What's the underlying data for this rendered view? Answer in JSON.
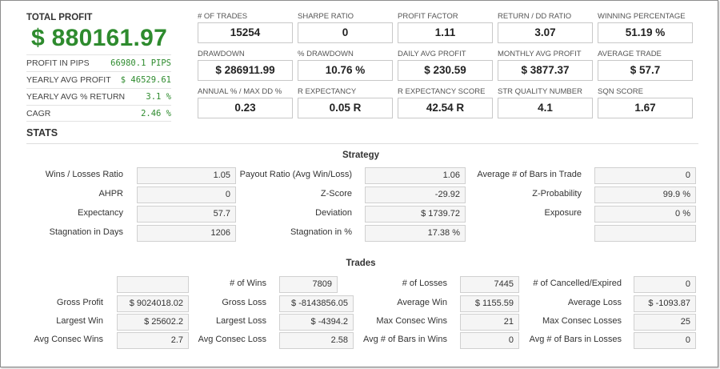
{
  "summary": {
    "total_label": "TOTAL PROFIT",
    "total_value": "$ 880161.97",
    "rows": [
      {
        "label": "PROFIT IN PIPS",
        "value": "66980.1 PIPS"
      },
      {
        "label": "YEARLY AVG PROFIT",
        "value": "$ 46529.61"
      },
      {
        "label": "YEARLY AVG % RETURN",
        "value": "3.1 %"
      },
      {
        "label": "CAGR",
        "value": "2.46 %"
      }
    ]
  },
  "cards": [
    {
      "label": "# OF TRADES",
      "value": "15254"
    },
    {
      "label": "SHARPE RATIO",
      "value": "0"
    },
    {
      "label": "PROFIT FACTOR",
      "value": "1.11"
    },
    {
      "label": "RETURN / DD RATIO",
      "value": "3.07"
    },
    {
      "label": "WINNING PERCENTAGE",
      "value": "51.19 %"
    },
    {
      "label": "DRAWDOWN",
      "value": "$ 286911.99"
    },
    {
      "label": "% DRAWDOWN",
      "value": "10.76 %"
    },
    {
      "label": "DAILY AVG PROFIT",
      "value": "$ 230.59"
    },
    {
      "label": "MONTHLY AVG PROFIT",
      "value": "$ 3877.37"
    },
    {
      "label": "AVERAGE TRADE",
      "value": "$ 57.7"
    },
    {
      "label": "ANNUAL % / MAX DD %",
      "value": "0.23"
    },
    {
      "label": "R EXPECTANCY",
      "value": "0.05 R"
    },
    {
      "label": "R EXPECTANCY SCORE",
      "value": "42.54 R"
    },
    {
      "label": "STR QUALITY NUMBER",
      "value": "4.1"
    },
    {
      "label": "SQN SCORE",
      "value": "1.67"
    }
  ],
  "stats_title": "STATS",
  "strategy": {
    "title": "Strategy",
    "rows": [
      [
        {
          "label": "Wins / Losses Ratio",
          "value": "1.05"
        },
        {
          "label": "Payout Ratio (Avg Win/Loss)",
          "value": "1.06"
        },
        {
          "label": "Average # of Bars in Trade",
          "value": "0"
        }
      ],
      [
        {
          "label": "AHPR",
          "value": "0"
        },
        {
          "label": "Z-Score",
          "value": "-29.92"
        },
        {
          "label": "Z-Probability",
          "value": "99.9 %"
        }
      ],
      [
        {
          "label": "Expectancy",
          "value": "57.7"
        },
        {
          "label": "Deviation",
          "value": "$ 1739.72"
        },
        {
          "label": "Exposure",
          "value": "0 %"
        }
      ],
      [
        {
          "label": "Stagnation in Days",
          "value": "1206"
        },
        {
          "label": "Stagnation in %",
          "value": "17.38 %"
        },
        {
          "label": "",
          "value": ""
        }
      ]
    ]
  },
  "trades": {
    "title": "Trades",
    "rows": [
      [
        {
          "label": "",
          "value": ""
        },
        {
          "label": "# of Wins",
          "value": "7809"
        },
        {
          "label": "# of Losses",
          "value": "7445"
        },
        {
          "label": "# of Cancelled/Expired",
          "value": "0"
        }
      ],
      [
        {
          "label": "Gross Profit",
          "value": "$ 9024018.02"
        },
        {
          "label": "Gross Loss",
          "value": "$ -8143856.05"
        },
        {
          "label": "Average Win",
          "value": "$ 1155.59"
        },
        {
          "label": "Average Loss",
          "value": "$ -1093.87"
        }
      ],
      [
        {
          "label": "Largest Win",
          "value": "$ 25602.2"
        },
        {
          "label": "Largest Loss",
          "value": "$ -4394.2"
        },
        {
          "label": "Max Consec Wins",
          "value": "21"
        },
        {
          "label": "Max Consec Losses",
          "value": "25"
        }
      ],
      [
        {
          "label": "Avg Consec Wins",
          "value": "2.7"
        },
        {
          "label": "Avg Consec Loss",
          "value": "2.58"
        },
        {
          "label": "Avg # of Bars in Wins",
          "value": "0"
        },
        {
          "label": "Avg # of Bars in Losses",
          "value": "0"
        }
      ]
    ]
  }
}
